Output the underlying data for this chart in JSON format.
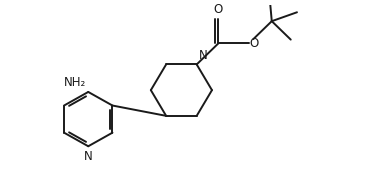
{
  "background_color": "#ffffff",
  "line_color": "#1a1a1a",
  "line_width": 1.4,
  "font_size": 8.5,
  "figsize": [
    3.74,
    1.94
  ],
  "dpi": 100,
  "xlim": [
    0,
    10
  ],
  "ylim": [
    0,
    5.2
  ]
}
